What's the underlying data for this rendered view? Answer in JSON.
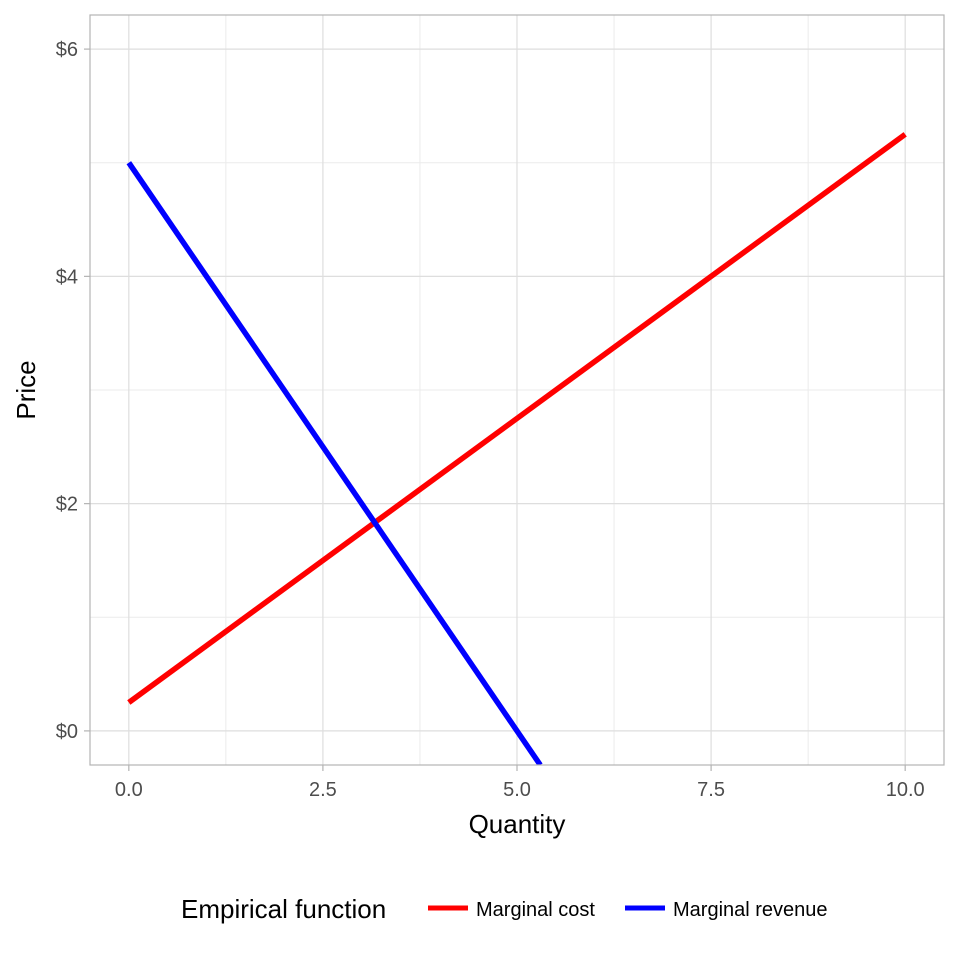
{
  "chart_data": {
    "type": "line",
    "xlabel": "Quantity",
    "ylabel": "Price",
    "xlim": [
      -0.5,
      10.5
    ],
    "ylim": [
      -0.3,
      6.3
    ],
    "x_ticks": [
      0.0,
      2.5,
      5.0,
      7.5,
      10.0
    ],
    "x_tick_labels": [
      "0.0",
      "2.5",
      "5.0",
      "7.5",
      "10.0"
    ],
    "y_ticks": [
      0,
      2,
      4,
      6
    ],
    "y_tick_labels": [
      "$0",
      "$2",
      "$4",
      "$6"
    ],
    "grid": true,
    "legend": {
      "title": "Empirical function",
      "position": "bottom"
    },
    "series": [
      {
        "name": "Marginal cost",
        "color": "#ff0000",
        "x": [
          0,
          10
        ],
        "y": [
          0.25,
          5.25
        ]
      },
      {
        "name": "Marginal revenue",
        "color": "#0000ff",
        "x": [
          0,
          5.3
        ],
        "y": [
          5.0,
          -0.3
        ]
      }
    ]
  }
}
